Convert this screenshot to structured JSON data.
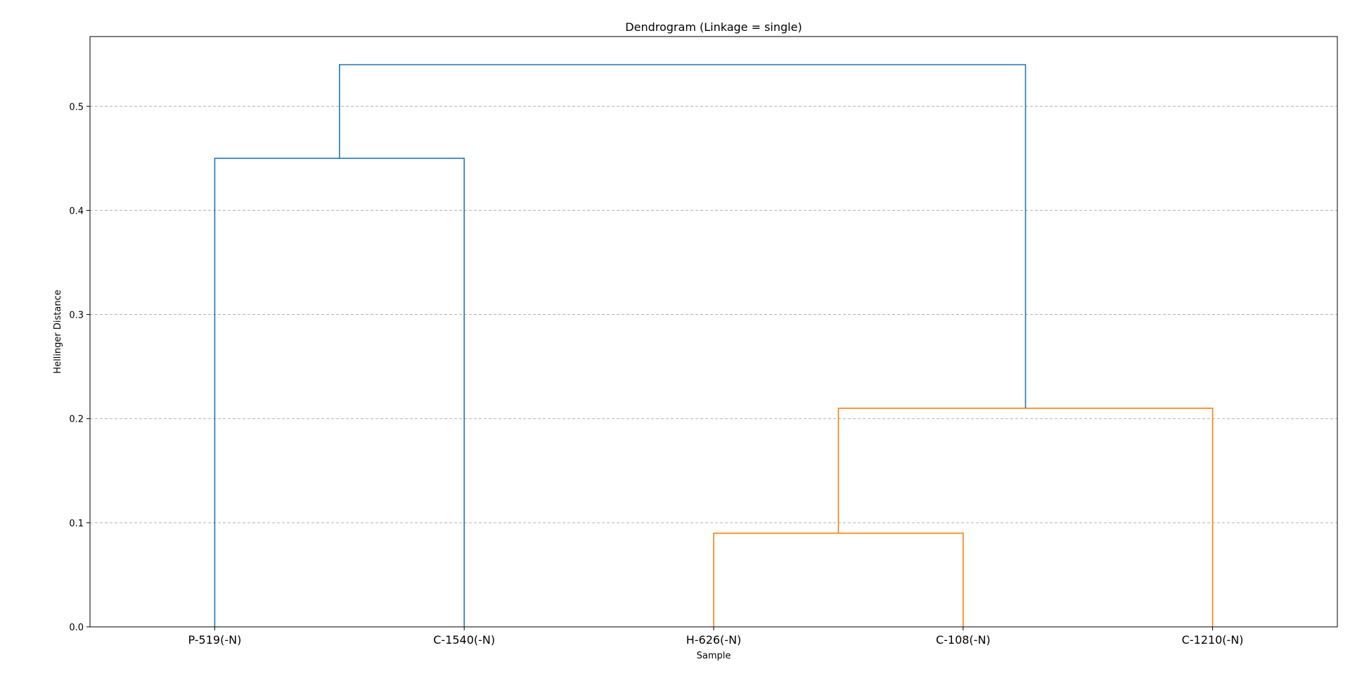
{
  "chart_data": {
    "type": "dendrogram",
    "title": "Dendrogram (Linkage = single)",
    "xlabel": "Sample",
    "ylabel": "Hellinger Distance",
    "ylim": [
      0,
      0.567
    ],
    "yticks": [
      "0.0",
      "0.1",
      "0.2",
      "0.3",
      "0.4",
      "0.5"
    ],
    "grid": "horizontal dashed",
    "leaves": [
      "P-519(-N)",
      "C-1540(-N)",
      "H-626(-N)",
      "C-108(-N)",
      "C-1210(-N)"
    ],
    "merges": [
      {
        "left": "H-626(-N)",
        "right": "C-108(-N)",
        "height": 0.09,
        "color": "#ff7f0e"
      },
      {
        "left": "H-626(-N) + C-108(-N)",
        "right": "C-1210(-N)",
        "height": 0.21,
        "color": "#ff7f0e"
      },
      {
        "left": "P-519(-N)",
        "right": "C-1540(-N)",
        "height": 0.45,
        "color": "#1f77b4"
      },
      {
        "left": "P-519(-N) + C-1540(-N)",
        "right": "H-626(-N) + C-108(-N) + C-1210(-N)",
        "height": 0.54,
        "color": "#1f77b4"
      }
    ],
    "colors": {
      "cluster_1": "#1f77b4",
      "cluster_2": "#ff7f0e",
      "grid": "#b0b0b0"
    }
  }
}
